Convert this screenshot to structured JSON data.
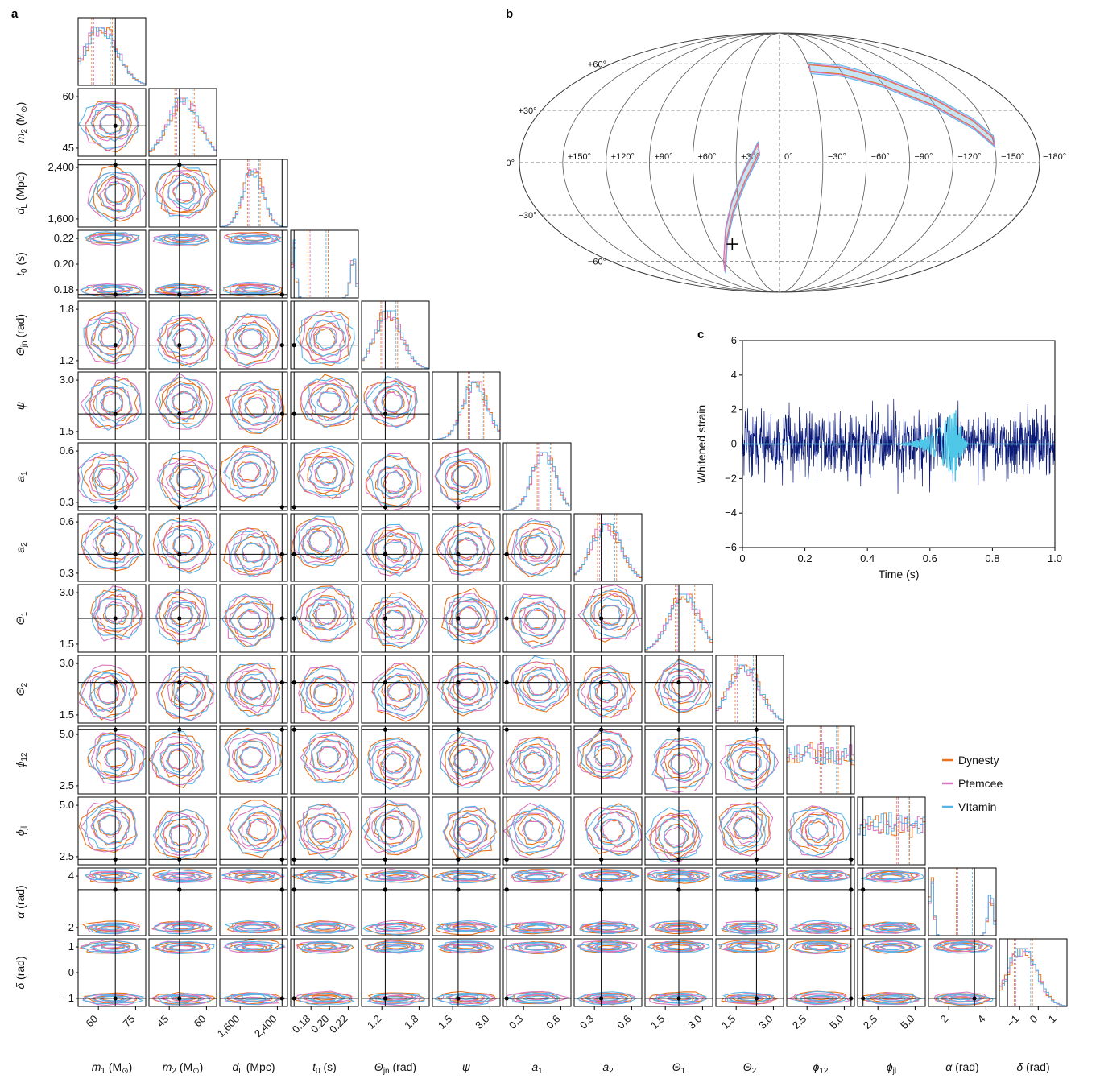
{
  "panel_labels": {
    "a": "a",
    "b": "b",
    "c": "c"
  },
  "colors": {
    "dynesty": "#e8711c",
    "ptemcee": "#d876c0",
    "vitamin": "#5ab4e8",
    "strain": "#0a1a7a",
    "whitened": "#4fc8e8",
    "truth": "#000000"
  },
  "legend": [
    {
      "label": "Dynesty",
      "color": "#e8711c"
    },
    {
      "label": "Ptemcee",
      "color": "#d876c0"
    },
    {
      "label": "VItamin",
      "color": "#5ab4e8"
    }
  ],
  "corner": {
    "params": [
      {
        "key": "m1",
        "name": "m",
        "sub": "1",
        "unit": " (M",
        "unit_sub": "⊙",
        "unit_end": ")",
        "ticks": [
          "60",
          "75"
        ]
      },
      {
        "key": "m2",
        "name": "m",
        "sub": "2",
        "unit": " (M",
        "unit_sub": "⊙",
        "unit_end": ")",
        "ticks": [
          "45",
          "60"
        ]
      },
      {
        "key": "dL",
        "name": "d",
        "sub": "L",
        "unit": " (Mpc)",
        "ticks": [
          "1,600",
          "2,400"
        ]
      },
      {
        "key": "t0",
        "name": "t",
        "sub": "0",
        "unit": " (s)",
        "ticks": [
          "0.18",
          "0.20",
          "0.22"
        ]
      },
      {
        "key": "thetajn",
        "name": "Θ",
        "sub": "jn",
        "unit": " (rad)",
        "ticks": [
          "1.2",
          "1.8"
        ]
      },
      {
        "key": "psi",
        "name": "ψ",
        "sub": "",
        "unit": "",
        "ticks": [
          "1.5",
          "3.0"
        ]
      },
      {
        "key": "a1",
        "name": "a",
        "sub": "1",
        "unit": "",
        "ticks": [
          "0.3",
          "0.6"
        ]
      },
      {
        "key": "a2",
        "name": "a",
        "sub": "2",
        "unit": "",
        "ticks": [
          "0.3",
          "0.6"
        ]
      },
      {
        "key": "theta1",
        "name": "Θ",
        "sub": "1",
        "unit": "",
        "ticks": [
          "1.5",
          "3.0"
        ]
      },
      {
        "key": "theta2",
        "name": "Θ",
        "sub": "2",
        "unit": "",
        "ticks": [
          "1.5",
          "3.0"
        ]
      },
      {
        "key": "phi12",
        "name": "ϕ",
        "sub": "12",
        "unit": "",
        "ticks": [
          "2.5",
          "5.0"
        ]
      },
      {
        "key": "phijl",
        "name": "ϕ",
        "sub": "jl",
        "unit": "",
        "ticks": [
          "2.5",
          "5.0"
        ]
      },
      {
        "key": "alpha",
        "name": "α",
        "sub": "",
        "unit": " (rad)",
        "ticks": [
          "2",
          "4"
        ]
      },
      {
        "key": "delta",
        "name": "δ",
        "sub": "",
        "unit": " (rad)",
        "ticks": [
          "−1",
          "0",
          "1"
        ]
      }
    ],
    "y_ticks": [
      [],
      [
        "60",
        "45"
      ],
      [
        "2,400",
        "1,600"
      ],
      [
        "0.22",
        "0.20",
        "0.18"
      ],
      [
        "1.8",
        "1.2"
      ],
      [
        "3.0",
        "1.5"
      ],
      [
        "0.6",
        "0.3"
      ],
      [
        "0.6",
        "0.3"
      ],
      [
        "3.0",
        "1.5"
      ],
      [
        "3.0",
        "1.5"
      ],
      [
        "5.0",
        "2.5"
      ],
      [
        "5.0",
        "2.5"
      ],
      [
        "4",
        "2"
      ],
      [
        "1",
        "0",
        "−1"
      ]
    ],
    "truth_fraction": [
      0.55,
      0.45,
      0.92,
      0.05,
      0.35,
      0.38,
      0.05,
      0.4,
      0.5,
      0.6,
      0.95,
      0.08,
      0.68,
      0.12
    ]
  },
  "sky_map": {
    "lat_labels": [
      "+60°",
      "+30°",
      "0°",
      "−30°",
      "−60°"
    ],
    "lon_labels": [
      "+150°",
      "+120°",
      "+90°",
      "+60°",
      "+30°",
      "0°",
      "−30°",
      "−60°",
      "−90°",
      "−120°",
      "−150°",
      "−180°"
    ]
  },
  "chart_data": {
    "type": "line",
    "title": "",
    "xlabel": "Time (s)",
    "ylabel": "Whitened strain",
    "xlim": [
      0,
      1.0
    ],
    "ylim": [
      -6,
      6
    ],
    "x_ticks": [
      "0",
      "0.2",
      "0.4",
      "0.6",
      "0.8",
      "1.0"
    ],
    "y_ticks": [
      "6",
      "4",
      "2",
      "0",
      "−2",
      "−4",
      "−6"
    ],
    "series": [
      {
        "kind": "noisy whitened strain",
        "amplitude_std": 0.9,
        "n_samples": 1024
      },
      {
        "kind": "whitened signal",
        "peak_time": 0.69,
        "peak_amplitude": 2.4
      }
    ]
  }
}
